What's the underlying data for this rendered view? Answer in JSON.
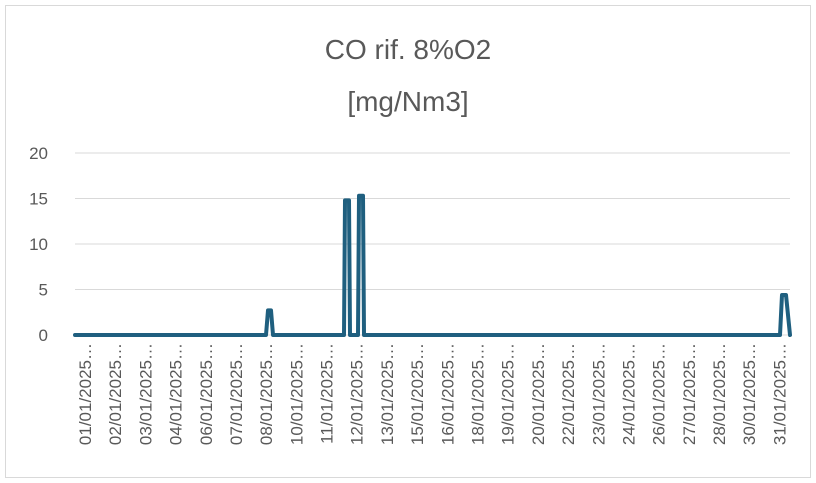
{
  "chart_data": {
    "type": "line",
    "title_line1": "CO rif. 8%O2",
    "title_line2": "[mg/Nm3]",
    "xlabel": "",
    "ylabel": "",
    "ylim": [
      0,
      20
    ],
    "y_ticks": [
      0,
      5,
      10,
      15,
      20
    ],
    "grid": true,
    "legend": "none",
    "color": "#1f5f7f",
    "x_tick_labels": [
      "01/01/2025…",
      "02/01/2025…",
      "03/01/2025…",
      "04/01/2025…",
      "06/01/2025…",
      "07/01/2025…",
      "08/01/2025…",
      "10/01/2025…",
      "11/01/2025…",
      "12/01/2025…",
      "13/01/2025…",
      "15/01/2025…",
      "16/01/2025…",
      "18/01/2025…",
      "19/01/2025…",
      "20/01/2025…",
      "22/01/2025…",
      "23/01/2025…",
      "24/01/2025…",
      "26/01/2025…",
      "27/01/2025…",
      "28/01/2025…",
      "30/01/2025…",
      "31/01/2025…"
    ],
    "series": [
      {
        "x": [
          "01/01/2025",
          "09/01/2025",
          "09/01/2025",
          "09/01/2025",
          "09/01/2025",
          "12/01/2025",
          "12/01/2025",
          "12/01/2025",
          "12/01/2025",
          "13/01/2025",
          "13/01/2025",
          "13/01/2025",
          "13/01/2025",
          "31/01/2025",
          "31/01/2025",
          "31/01/2025",
          "31/01/2025"
        ],
        "values": [
          0,
          0,
          2.7,
          2.7,
          0,
          0,
          14.8,
          14.8,
          0,
          0,
          15.3,
          15.3,
          0,
          0,
          4.4,
          4.4,
          0
        ]
      }
    ]
  }
}
